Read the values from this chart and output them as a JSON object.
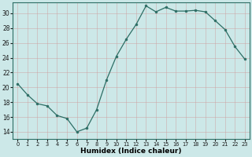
{
  "x": [
    0,
    1,
    2,
    3,
    4,
    5,
    6,
    7,
    8,
    9,
    10,
    11,
    12,
    13,
    14,
    15,
    16,
    17,
    18,
    19,
    20,
    21,
    22,
    23
  ],
  "y": [
    20.5,
    19.0,
    17.8,
    17.5,
    16.2,
    15.8,
    14.0,
    14.5,
    17.0,
    21.0,
    24.2,
    26.5,
    28.5,
    31.0,
    30.2,
    30.8,
    30.3,
    30.3,
    30.4,
    30.2,
    29.0,
    27.8,
    25.5,
    23.8
  ],
  "line_color": "#2d6e65",
  "marker": "o",
  "marker_size": 2.0,
  "bg_color": "#cce8e8",
  "grid_color": "#aacccc",
  "xlabel": "Humidex (Indice chaleur)",
  "xlim": [
    -0.5,
    23.5
  ],
  "ylim": [
    13.0,
    31.5
  ],
  "yticks": [
    14,
    16,
    18,
    20,
    22,
    24,
    26,
    28,
    30
  ],
  "xticks": [
    0,
    1,
    2,
    3,
    4,
    5,
    6,
    7,
    8,
    9,
    10,
    11,
    12,
    13,
    14,
    15,
    16,
    17,
    18,
    19,
    20,
    21,
    22,
    23
  ],
  "tick_label_color": "#1a1a1a",
  "spine_color": "#2d6e65",
  "xlabel_color": "#000000",
  "xlabel_fontsize": 6.5,
  "ytick_fontsize": 5.5,
  "xtick_fontsize": 4.8
}
